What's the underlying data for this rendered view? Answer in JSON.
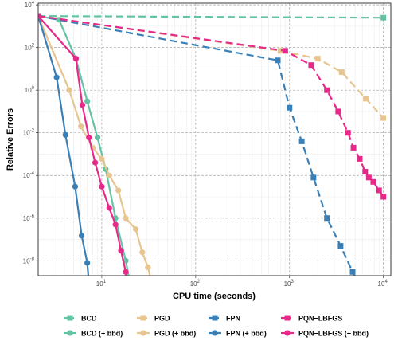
{
  "chart_data": {
    "type": "line",
    "xlabel": "CPU time (seconds)",
    "ylabel": "Relative Errors",
    "x_scale": "log",
    "y_scale": "log",
    "xlim": [
      2.1,
      12000
    ],
    "ylim": [
      2e-09,
      12000
    ],
    "x_ticks": [
      10,
      100,
      1000,
      10000
    ],
    "x_tick_labels": [
      [
        "10",
        "1"
      ],
      [
        "10",
        "2"
      ],
      [
        "10",
        "3"
      ],
      [
        "10",
        "4"
      ]
    ],
    "y_ticks": [
      1e-08,
      1e-06,
      0.0001,
      0.01,
      1,
      100,
      10000
    ],
    "y_tick_labels": [
      [
        "10",
        "-8"
      ],
      [
        "10",
        "-6"
      ],
      [
        "10",
        "-4"
      ],
      [
        "10",
        "-2"
      ],
      [
        "10",
        "0"
      ],
      [
        "10",
        "2"
      ],
      [
        "10",
        "4"
      ]
    ],
    "grid": true,
    "legend_position": "bottom",
    "series": [
      {
        "name": "BCD",
        "color": "#66c2a5",
        "marker": "square",
        "points": [
          [
            2.1,
            3000
          ],
          [
            10000,
            2500
          ]
        ]
      },
      {
        "name": "BCD (+ bbd)",
        "color": "#66c2a5",
        "marker": "circle",
        "points": [
          [
            2.1,
            3000
          ],
          [
            3.5,
            2000
          ],
          [
            5.3,
            30
          ],
          [
            7,
            0.3
          ],
          [
            9,
            0.006
          ],
          [
            11,
            0.0002
          ],
          [
            14,
            1e-06
          ],
          [
            18,
            1e-08
          ],
          [
            22,
            1e-10
          ]
        ]
      },
      {
        "name": "PGD",
        "color": "#e6c591",
        "marker": "square",
        "points": [
          [
            2.1,
            3000
          ],
          [
            800,
            70
          ],
          [
            2000,
            30
          ],
          [
            3600,
            7
          ],
          [
            6500,
            0.4
          ],
          [
            10000,
            0.05
          ]
        ]
      },
      {
        "name": "PGD (+ bbd)",
        "color": "#e6c591",
        "marker": "circle",
        "points": [
          [
            2.1,
            3000
          ],
          [
            4.5,
            1
          ],
          [
            6,
            0.02
          ],
          [
            8,
            0.002
          ],
          [
            10,
            0.0006
          ],
          [
            12,
            0.0001
          ],
          [
            15,
            2e-05
          ],
          [
            18,
            1e-06
          ],
          [
            23,
            3e-07
          ],
          [
            27,
            2.5e-08
          ],
          [
            31,
            5e-09
          ],
          [
            38,
            1e-10
          ]
        ]
      },
      {
        "name": "FPN",
        "color": "#3a7fb5",
        "marker": "square",
        "points": [
          [
            2.1,
            3000
          ],
          [
            750,
            25
          ],
          [
            1000,
            0.15
          ],
          [
            1350,
            0.004
          ],
          [
            1800,
            8e-05
          ],
          [
            2500,
            1e-06
          ],
          [
            3500,
            5e-08
          ],
          [
            4700,
            3e-09
          ],
          [
            7000,
            1e-10
          ]
        ]
      },
      {
        "name": "FPN (+ bbd)",
        "color": "#3a7fb5",
        "marker": "circle",
        "points": [
          [
            2.1,
            3000
          ],
          [
            3.3,
            4
          ],
          [
            4.1,
            0.008
          ],
          [
            5.2,
            3e-05
          ],
          [
            6.1,
            1.5e-07
          ],
          [
            7,
            8e-09
          ],
          [
            7.6,
            1e-10
          ]
        ]
      },
      {
        "name": "PQN−LBFGS",
        "color": "#e7298a",
        "marker": "square",
        "points": [
          [
            2.1,
            3000
          ],
          [
            900,
            70
          ],
          [
            1700,
            15
          ],
          [
            2500,
            1
          ],
          [
            3300,
            0.1
          ],
          [
            4200,
            0.01
          ],
          [
            4800,
            0.002
          ],
          [
            5600,
            0.0006
          ],
          [
            6400,
            0.00015
          ],
          [
            7000,
            8e-05
          ],
          [
            7800,
            5e-05
          ],
          [
            9000,
            2e-05
          ],
          [
            10000,
            1e-05
          ]
        ]
      },
      {
        "name": "PQN−LBFGS (+ bbd)",
        "color": "#e7298a",
        "marker": "circle",
        "points": [
          [
            2.1,
            3000
          ],
          [
            5.3,
            30
          ],
          [
            6.2,
            0.2
          ],
          [
            7.3,
            0.006
          ],
          [
            8.5,
            0.0004
          ],
          [
            10,
            3e-05
          ],
          [
            12,
            3e-06
          ],
          [
            14,
            5e-07
          ],
          [
            16,
            3e-08
          ],
          [
            18,
            3e-09
          ],
          [
            20,
            1e-10
          ]
        ]
      }
    ],
    "legend_rows": [
      [
        "BCD",
        "PGD",
        "FPN",
        "PQN−LBFGS"
      ],
      [
        "BCD (+ bbd)",
        "PGD (+ bbd)",
        "FPN (+ bbd)",
        "PQN−LBFGS (+ bbd)"
      ]
    ]
  }
}
